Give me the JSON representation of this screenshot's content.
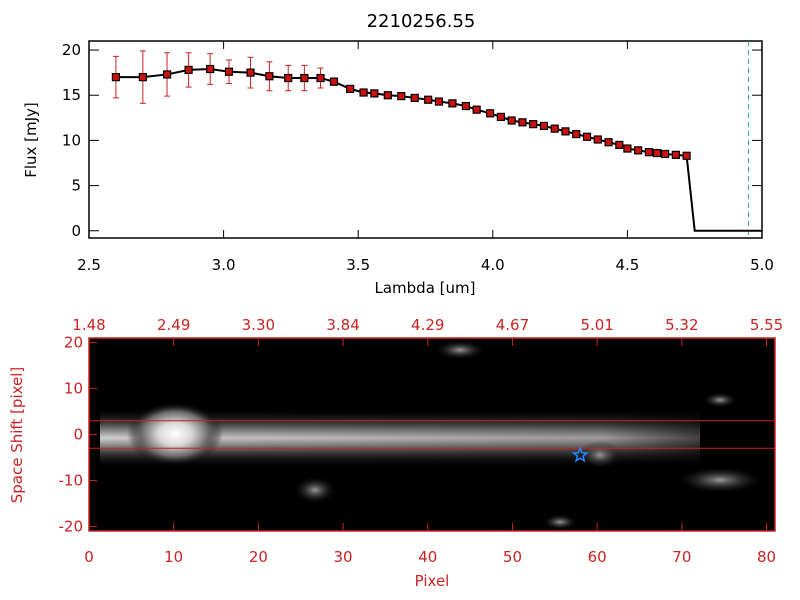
{
  "colors": {
    "axis_black": "#000000",
    "axis_red": "#cc2222",
    "error_red": "#cc2222",
    "marker_fill": "#cc1111",
    "line": "#000000",
    "ref_line": "#cc2222",
    "vline": "#33aa88",
    "star": "#2288ff"
  },
  "chart_data": [
    {
      "type": "line",
      "title": "2210256.55",
      "xlabel": "Lambda [um]",
      "ylabel": "Flux [mJy]",
      "xlim": [
        2.5,
        5.0
      ],
      "ylim": [
        -0.8,
        21
      ],
      "xticks": [
        2.5,
        3.0,
        3.5,
        4.0,
        4.5,
        5.0
      ],
      "xtick_labels": [
        "2.5",
        "3.0",
        "3.5",
        "4.0",
        "4.5",
        "5.0"
      ],
      "yticks": [
        0,
        5,
        10,
        15,
        20
      ],
      "ytick_labels": [
        "0",
        "5",
        "10",
        "15",
        "20"
      ],
      "series": [
        {
          "x": [
            2.6,
            2.7,
            2.79,
            2.87,
            2.95,
            3.02,
            3.1,
            3.17,
            3.24,
            3.3,
            3.36,
            3.41,
            3.47,
            3.52,
            3.56,
            3.61,
            3.66,
            3.71,
            3.76,
            3.8,
            3.85,
            3.9,
            3.94,
            3.99,
            4.03,
            4.07,
            4.11,
            4.15,
            4.19,
            4.23,
            4.27,
            4.31,
            4.35,
            4.39,
            4.43,
            4.47,
            4.5,
            4.54,
            4.58,
            4.61,
            4.64,
            4.68,
            4.72
          ],
          "y": [
            17.0,
            17.0,
            17.3,
            17.8,
            17.9,
            17.6,
            17.5,
            17.1,
            16.9,
            16.9,
            16.9,
            16.5,
            15.7,
            15.3,
            15.2,
            15.0,
            14.9,
            14.7,
            14.5,
            14.3,
            14.1,
            13.8,
            13.4,
            13.0,
            12.6,
            12.2,
            12.0,
            11.8,
            11.6,
            11.3,
            11.0,
            10.7,
            10.4,
            10.1,
            9.8,
            9.5,
            9.1,
            8.9,
            8.7,
            8.6,
            8.5,
            8.4,
            8.3
          ],
          "yerr": [
            2.3,
            2.9,
            2.4,
            1.9,
            1.7,
            1.3,
            1.7,
            1.6,
            1.4,
            1.4,
            1.1,
            0.4,
            0.3,
            0.3,
            0.3,
            0.3,
            0.3,
            0.3,
            0.3,
            0.3,
            0.3,
            0.3,
            0.3,
            0.3,
            0.3,
            0.3,
            0.3,
            0.3,
            0.3,
            0.3,
            0.3,
            0.3,
            0.3,
            0.3,
            0.3,
            0.3,
            0.3,
            0.3,
            0.3,
            0.3,
            0.3,
            0.3,
            0.3
          ]
        }
      ],
      "dropoff": {
        "x": [
          4.72,
          4.75,
          5.0
        ],
        "y": [
          8.3,
          0.0,
          0.0
        ]
      },
      "vline_x": 4.95
    },
    {
      "type": "heatmap",
      "xlabel": "Pixel",
      "ylabel": "Space Shift [pixel]",
      "xlim": [
        0,
        81
      ],
      "ylim": [
        -21,
        21
      ],
      "xticks": [
        0,
        10,
        20,
        30,
        40,
        50,
        60,
        70,
        80
      ],
      "xtick_labels": [
        "0",
        "10",
        "20",
        "30",
        "40",
        "50",
        "60",
        "70",
        "80"
      ],
      "yticks": [
        -20,
        -10,
        0,
        10,
        20
      ],
      "ytick_labels": [
        "-20",
        "-10",
        "0",
        "10",
        "20"
      ],
      "top_axis_labels": [
        "1.48",
        "2.49",
        "3.30",
        "3.84",
        "4.29",
        "4.67",
        "5.01",
        "5.32",
        "5.55"
      ],
      "aperture_y": [
        3,
        -3
      ],
      "star": {
        "x": 58,
        "y": -4.5
      }
    }
  ]
}
